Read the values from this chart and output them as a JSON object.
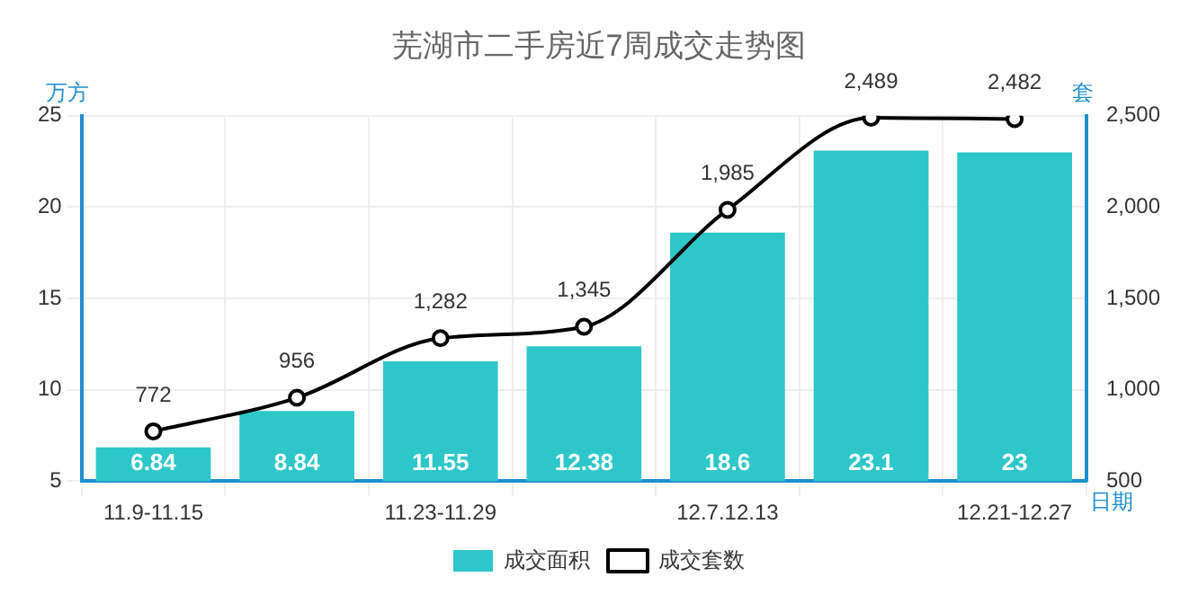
{
  "chart_data": {
    "type": "bar",
    "title": "芜湖市二手房近7周成交走势图",
    "xlabel": "日期",
    "ylabel": "万方",
    "y2label": "套",
    "categories": [
      "11.9-11.15",
      null,
      "11.23-11.29",
      null,
      "12.7.12.13",
      null,
      "12.21-12.27"
    ],
    "series": [
      {
        "name": "成交面积",
        "color": "#2ec7c9",
        "values": [
          6.84,
          8.84,
          11.55,
          12.38,
          18.6,
          23.1,
          23
        ],
        "value_labels": [
          "6.84",
          "8.84",
          "11.55",
          "12.38",
          "18.6",
          "23.1",
          "23"
        ]
      },
      {
        "name": "成交套数",
        "type": "line",
        "axis": "y2",
        "color": "#000000",
        "marker": "circle",
        "values": [
          772,
          956,
          1282,
          1345,
          1985,
          2489,
          2482
        ],
        "value_labels": [
          "772",
          "956",
          "1,282",
          "1,345",
          "1,985",
          "2,489",
          "2,482"
        ]
      }
    ],
    "ylim": [
      5,
      25
    ],
    "yticks": [
      5,
      10,
      15,
      20,
      25
    ],
    "y2lim": [
      500,
      2500
    ],
    "y2ticks": [
      {
        "value": 500,
        "label": "500"
      },
      {
        "value": 1000,
        "label": "1,000"
      },
      {
        "value": 1500,
        "label": "1,500"
      },
      {
        "value": 2000,
        "label": "2,000"
      },
      {
        "value": 2500,
        "label": "2,500"
      }
    ],
    "grid": true,
    "legend": "bottom"
  }
}
